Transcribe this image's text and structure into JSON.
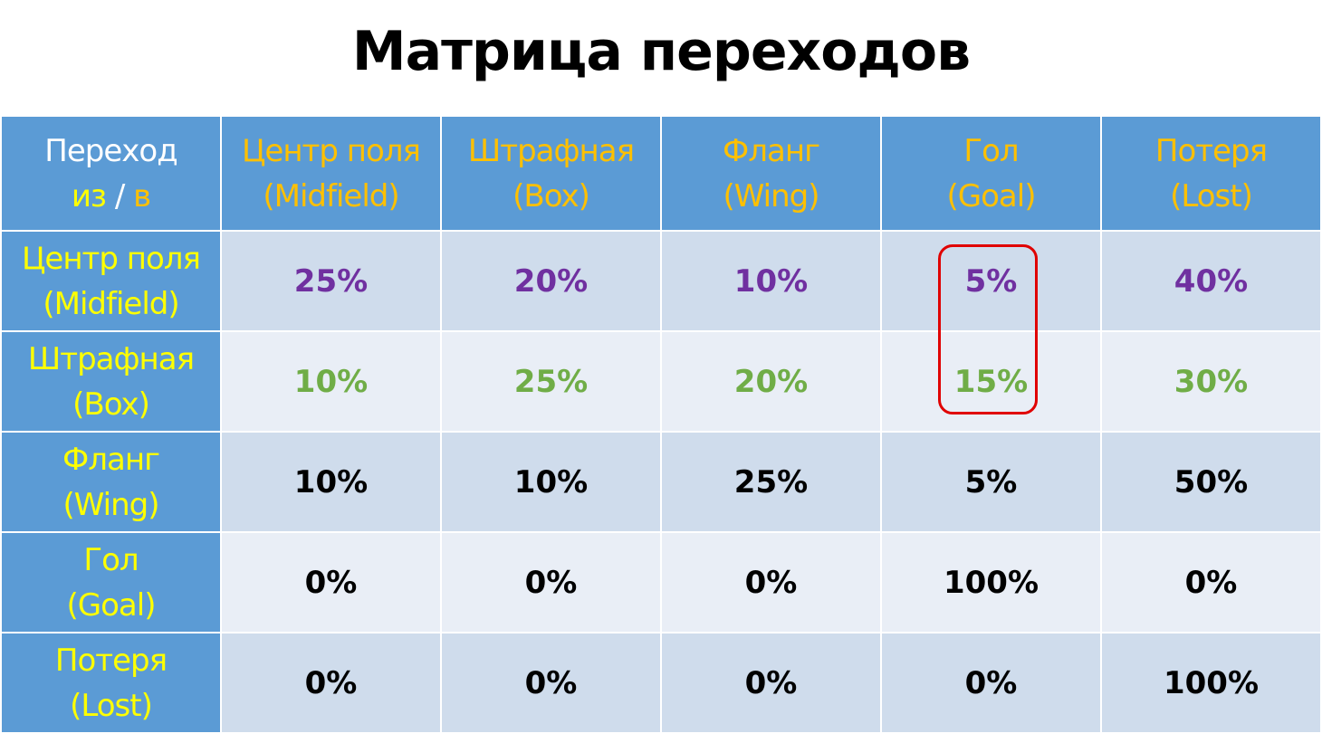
{
  "title": "Матрица переходов",
  "corner": {
    "line1": "Переход",
    "from": "из",
    "sep": "/",
    "to": "в"
  },
  "columns": [
    {
      "line1": "Центр поля",
      "line2": "(Midfield)"
    },
    {
      "line1": "Штрафная",
      "line2": "(Box)"
    },
    {
      "line1": "Фланг",
      "line2": "(Wing)"
    },
    {
      "line1": "Гол",
      "line2": "(Goal)"
    },
    {
      "line1": "Потеря",
      "line2": "(Lost)"
    }
  ],
  "rows": [
    {
      "line1": "Центр поля",
      "line2": "(Midfield)",
      "color": "purple",
      "values": [
        "25%",
        "20%",
        "10%",
        "5%",
        "40%"
      ]
    },
    {
      "line1": "Штрафная",
      "line2": "(Box)",
      "color": "green",
      "values": [
        "10%",
        "25%",
        "20%",
        "15%",
        "30%"
      ]
    },
    {
      "line1": "Фланг",
      "line2": "(Wing)",
      "color": "black",
      "values": [
        "10%",
        "10%",
        "25%",
        "5%",
        "50%"
      ]
    },
    {
      "line1": "Гол",
      "line2": "(Goal)",
      "color": "black",
      "values": [
        "0%",
        "0%",
        "0%",
        "100%",
        "0%"
      ]
    },
    {
      "line1": "Потеря",
      "line2": "(Lost)",
      "color": "black",
      "values": [
        "0%",
        "0%",
        "0%",
        "0%",
        "100%"
      ]
    }
  ],
  "colors": {
    "header_bg": "#5b9bd5",
    "header_text": "#ffc000",
    "row_header_text": "#ffff00",
    "purple": "#7030a0",
    "green": "#70ad47",
    "highlight_border": "#e00000"
  }
}
